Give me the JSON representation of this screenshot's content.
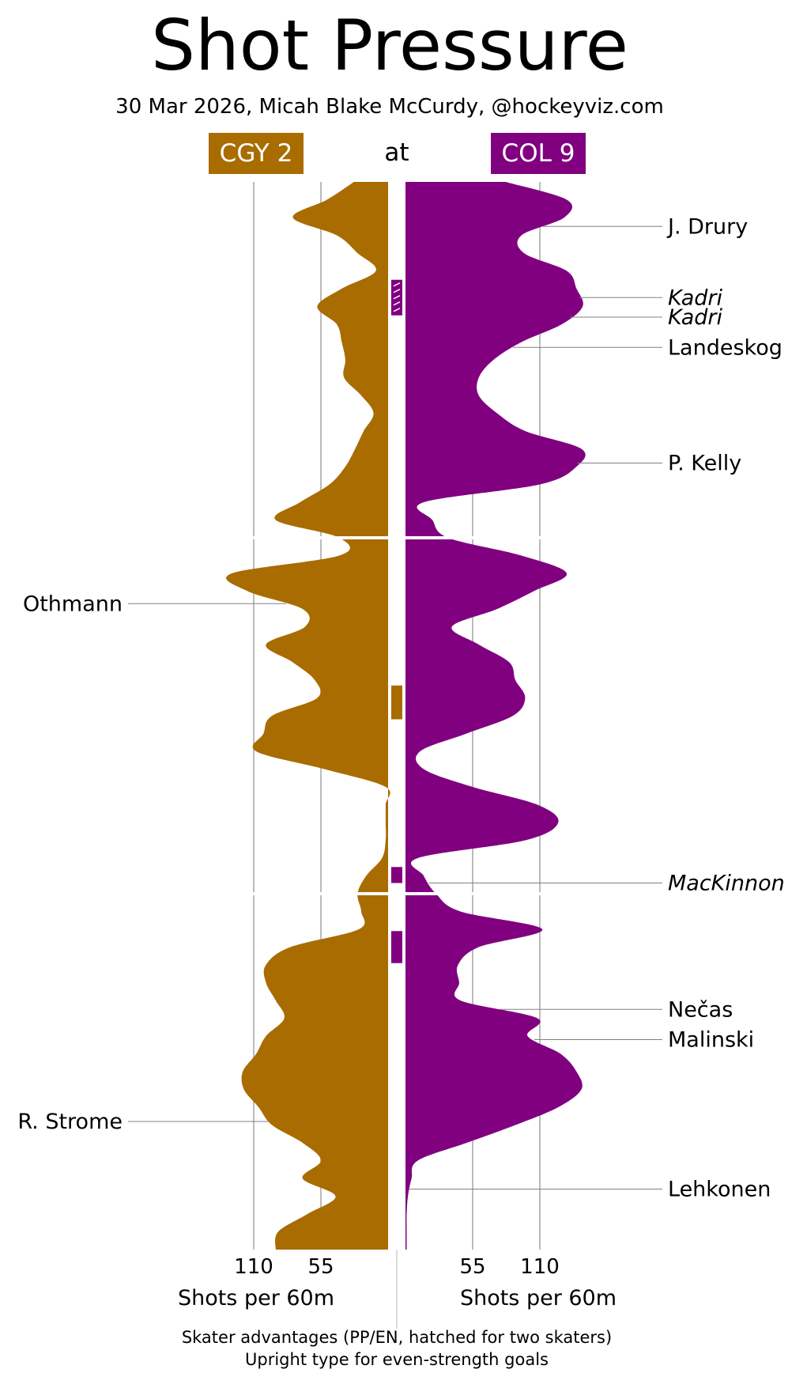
{
  "title": "Shot Pressure",
  "subtitle": "30 Mar 2026, Micah Blake McCurdy, @hockeyviz.com",
  "away": {
    "label": "CGY 2",
    "color": "#a86c00"
  },
  "at_label": "at",
  "home": {
    "label": "COL 9",
    "color": "#800080"
  },
  "footer": {
    "line1": "Skater advantages (PP/EN, hatched for two skaters)",
    "line2": "Upright type for even-strength goals"
  },
  "chart_data": {
    "type": "area",
    "orientation": "vertical-mirrored",
    "periods": 3,
    "minutes_per_period": 20,
    "x_axis_label_left": "Shots per 60m",
    "x_axis_label_right": "Shots per 60m",
    "x_ticks": [
      55,
      110
    ],
    "xlim": [
      0,
      140
    ],
    "series": [
      {
        "name": "CGY 2",
        "side": "left",
        "minutes": [
          0,
          1,
          2,
          3,
          4,
          5,
          6,
          7,
          8,
          9,
          10,
          11,
          12,
          13,
          14,
          15,
          16,
          17,
          18,
          19,
          20,
          21,
          22,
          23,
          24,
          25,
          26,
          27,
          28,
          29,
          30,
          31,
          32,
          33,
          34,
          35,
          36,
          37,
          38,
          39,
          40,
          41,
          42,
          43,
          44,
          45,
          46,
          47,
          48,
          49,
          50,
          51,
          52,
          53,
          54,
          55,
          56,
          57,
          58,
          59,
          60
        ],
        "values": [
          28,
          50,
          78,
          42,
          25,
          10,
          38,
          58,
          42,
          38,
          35,
          36,
          22,
          12,
          20,
          27,
          35,
          48,
          72,
          92,
          40,
          40,
          128,
          115,
          70,
          68,
          100,
          78,
          60,
          58,
          95,
          102,
          108,
          52,
          2,
          2,
          2,
          2,
          5,
          18,
          25,
          22,
          24,
          80,
          100,
          100,
          92,
          85,
          100,
          108,
          119,
          118,
          106,
          95,
          70,
          55,
          70,
          43,
          66,
          90,
          92
        ]
      },
      {
        "name": "COL 9",
        "side": "right",
        "minutes": [
          0,
          1,
          2,
          3,
          4,
          5,
          6,
          7,
          8,
          9,
          10,
          11,
          12,
          13,
          14,
          15,
          16,
          17,
          18,
          19,
          20,
          21,
          22,
          23,
          24,
          25,
          26,
          27,
          28,
          29,
          30,
          31,
          32,
          33,
          34,
          35,
          36,
          37,
          38,
          39,
          40,
          41,
          42,
          43,
          44,
          45,
          46,
          47,
          48,
          49,
          50,
          51,
          52,
          53,
          54,
          55,
          56,
          57,
          58,
          59,
          60
        ],
        "values": [
          82,
          132,
          130,
          95,
          97,
          132,
          140,
          145,
          128,
          95,
          72,
          60,
          60,
          75,
          98,
          144,
          140,
          110,
          15,
          22,
          35,
          95,
          132,
          105,
          75,
          38,
          60,
          85,
          90,
          98,
          88,
          50,
          12,
          15,
          55,
          108,
          125,
          98,
          10,
          15,
          25,
          45,
          112,
          60,
          43,
          44,
          45,
          108,
          100,
          127,
          140,
          144,
          125,
          90,
          50,
          10,
          5,
          2,
          1,
          1,
          1
        ]
      }
    ],
    "skater_advantages": [
      {
        "team": "COL 9",
        "start_min": 5.5,
        "end_min": 7.5,
        "hatched": true
      },
      {
        "team": "CGY 2",
        "start_min": 28.3,
        "end_min": 30.2,
        "hatched": false
      },
      {
        "team": "COL 9",
        "start_min": 38.5,
        "end_min": 39.4,
        "hatched": false
      },
      {
        "team": "COL 9",
        "start_min": 42.1,
        "end_min": 43.9,
        "hatched": false
      }
    ],
    "goals": [
      {
        "team": "COL 9",
        "player": "J. Drury",
        "minute": 2.5,
        "even_strength": true
      },
      {
        "team": "COL 9",
        "player": "Kadri",
        "minute": 6.5,
        "even_strength": false
      },
      {
        "team": "COL 9",
        "player": "Kadri",
        "minute": 7.6,
        "even_strength": false
      },
      {
        "team": "COL 9",
        "player": "Landeskog",
        "minute": 9.3,
        "even_strength": true
      },
      {
        "team": "COL 9",
        "player": "P. Kelly",
        "minute": 15.8,
        "even_strength": true
      },
      {
        "team": "CGY 2",
        "player": "Othmann",
        "minute": 23.7,
        "even_strength": true
      },
      {
        "team": "COL 9",
        "player": "MacKinnon",
        "minute": 39.4,
        "even_strength": false
      },
      {
        "team": "COL 9",
        "player": "Nečas",
        "minute": 46.5,
        "even_strength": true
      },
      {
        "team": "COL 9",
        "player": "Malinski",
        "minute": 48.2,
        "even_strength": true
      },
      {
        "team": "CGY 2",
        "player": "R. Strome",
        "minute": 52.8,
        "even_strength": true
      },
      {
        "team": "COL 9",
        "player": "Lehkonen",
        "minute": 56.6,
        "even_strength": true
      }
    ]
  }
}
